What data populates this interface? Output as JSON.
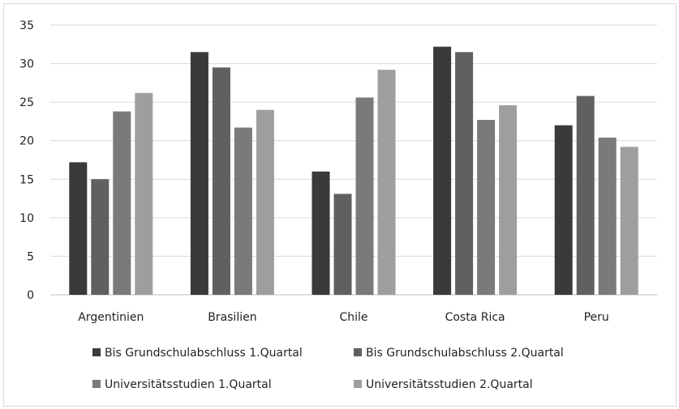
{
  "chart_data": {
    "type": "bar",
    "title": "",
    "xlabel": "",
    "ylabel": "",
    "ylim": [
      0,
      35
    ],
    "yticks": [
      0,
      5,
      10,
      15,
      20,
      25,
      30,
      35
    ],
    "grid": true,
    "legend_position": "bottom",
    "categories": [
      "Argentinien",
      "Brasilien",
      "Chile",
      "Costa Rica",
      "Peru"
    ],
    "series": [
      {
        "name": "Bis Grundschulabschluss 1.Quartal",
        "color": "#3a3a3a",
        "values": [
          17.2,
          31.5,
          16.0,
          32.2,
          22.0
        ]
      },
      {
        "name": "Bis Grundschulabschluss 2.Quartal",
        "color": "#606060",
        "values": [
          15.0,
          29.5,
          13.1,
          31.5,
          25.8
        ]
      },
      {
        "name": "Universitätsstudien 1.Quartal",
        "color": "#7a7a7a",
        "values": [
          23.8,
          21.7,
          25.6,
          22.7,
          20.4
        ]
      },
      {
        "name": "Universitätsstudien 2.Quartal",
        "color": "#9e9e9e",
        "values": [
          26.2,
          24.0,
          29.2,
          24.6,
          19.2
        ]
      }
    ]
  }
}
